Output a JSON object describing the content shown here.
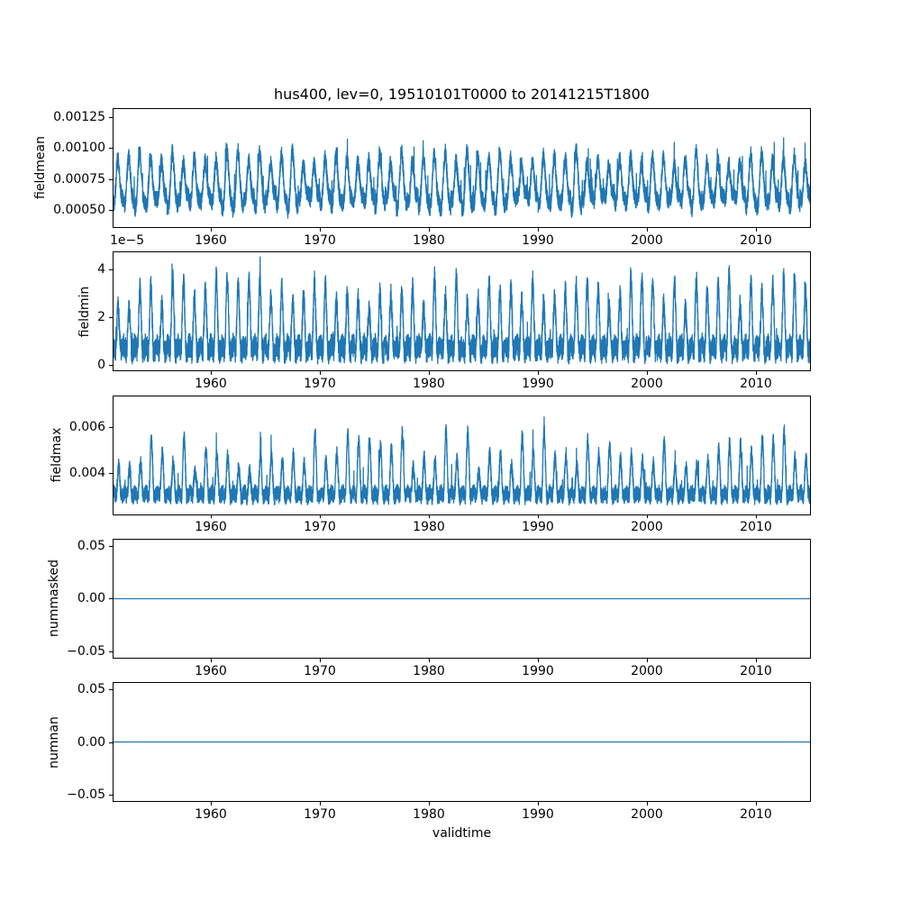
{
  "chart_data": {
    "type": "line",
    "title": "hus400, lev=0, 19510101T0000 to 20141215T1800",
    "xlabel": "validtime",
    "line_color": "#1f77b4",
    "grid": false,
    "legend": "none",
    "x_range": [
      1951,
      2015
    ],
    "x_ticks": [
      1960,
      1970,
      1980,
      1990,
      2000,
      2010
    ],
    "x_tick_labels": [
      "1960",
      "1970",
      "1980",
      "1990",
      "2000",
      "2010"
    ],
    "subplots": [
      {
        "ylabel": "fieldmean",
        "ylim": [
          0.00036,
          0.00132
        ],
        "yticks": [
          0.0005,
          0.00075,
          0.001,
          0.00125
        ],
        "ytick_labels": [
          "0.00050",
          "0.00075",
          "0.00100",
          "0.00125"
        ],
        "offset_label": "",
        "description": "Dense sub-daily time series with annual cycle; band oscillates roughly 0.00045-0.0011 with yearly peaks up to ~0.00125",
        "series": {
          "kind": "seasonal",
          "seed": 42,
          "samples_per_year": 120,
          "base": 0.0007,
          "noise": 7e-05,
          "season": {
            "amp": 0.00017,
            "jitter": 6e-05,
            "exp": 1,
            "phase": 0.75,
            "rectify": false
          },
          "semi": {
            "amp": 5e-05,
            "phase": 2.0
          },
          "spike_prob": 0.01,
          "spike_amp": 0.00016,
          "clamp_min": 0.0004,
          "observed_range": [
            0.0004,
            0.00127
          ]
        }
      },
      {
        "ylabel": "fieldmin",
        "ylim": [
          -2.5e-06,
          4.75e-05
        ],
        "yticks": [
          0,
          2e-05,
          4e-05
        ],
        "ytick_labels": [
          "0",
          "2",
          "4"
        ],
        "offset_label": "1e−5",
        "description": "Spiky annual cycle; baseline band ~0-1.5e-5 with yearly peaks ~2.5-3.5e-5, occasional peaks to ~4.5e-5",
        "series": {
          "kind": "seasonal",
          "seed": 7,
          "samples_per_year": 120,
          "base": 7e-06,
          "noise": 5e-06,
          "season": {
            "amp": 2.2e-05,
            "jitter": 7e-06,
            "exp": 2,
            "phase": 0.75,
            "rectify": true
          },
          "semi": {
            "amp": 1.5e-06,
            "phase": 1.0
          },
          "spike_prob": 0.006,
          "spike_amp": 5e-06,
          "clamp_min": 5e-07,
          "observed_range": [
            5e-07,
            4.5e-05
          ]
        }
      },
      {
        "ylabel": "fieldmax",
        "ylim": [
          0.0022,
          0.0074
        ],
        "yticks": [
          0.004,
          0.006
        ],
        "ytick_labels": [
          "0.004",
          "0.006"
        ],
        "offset_label": "",
        "description": "Dense baseline band ~0.0027-0.0035 with annual peaks to ~0.005-0.007",
        "series": {
          "kind": "seasonal",
          "seed": 99,
          "samples_per_year": 120,
          "base": 0.0031,
          "noise": 0.00035,
          "season": {
            "amp": 0.0018,
            "jitter": 0.0009,
            "exp": 2,
            "phase": 0.7,
            "rectify": true
          },
          "semi": {
            "amp": 0.0001,
            "phase": 0.5
          },
          "spike_prob": 0.005,
          "spike_amp": 0.0007,
          "clamp_min": 0.0024,
          "observed_range": [
            0.0024,
            0.0072
          ]
        }
      },
      {
        "ylabel": "nummasked",
        "ylim": [
          -0.057,
          0.057
        ],
        "yticks": [
          -0.05,
          0,
          0.05
        ],
        "ytick_labels": [
          "−0.05",
          "0.00",
          "0.05"
        ],
        "offset_label": "",
        "description": "Constant zero line across the full time range",
        "series": {
          "kind": "constant",
          "value": 0
        }
      },
      {
        "ylabel": "numnan",
        "ylim": [
          -0.057,
          0.057
        ],
        "yticks": [
          -0.05,
          0,
          0.05
        ],
        "ytick_labels": [
          "−0.05",
          "0.00",
          "0.05"
        ],
        "offset_label": "",
        "description": "Constant zero line across the full time range",
        "series": {
          "kind": "constant",
          "value": 0
        }
      }
    ]
  }
}
